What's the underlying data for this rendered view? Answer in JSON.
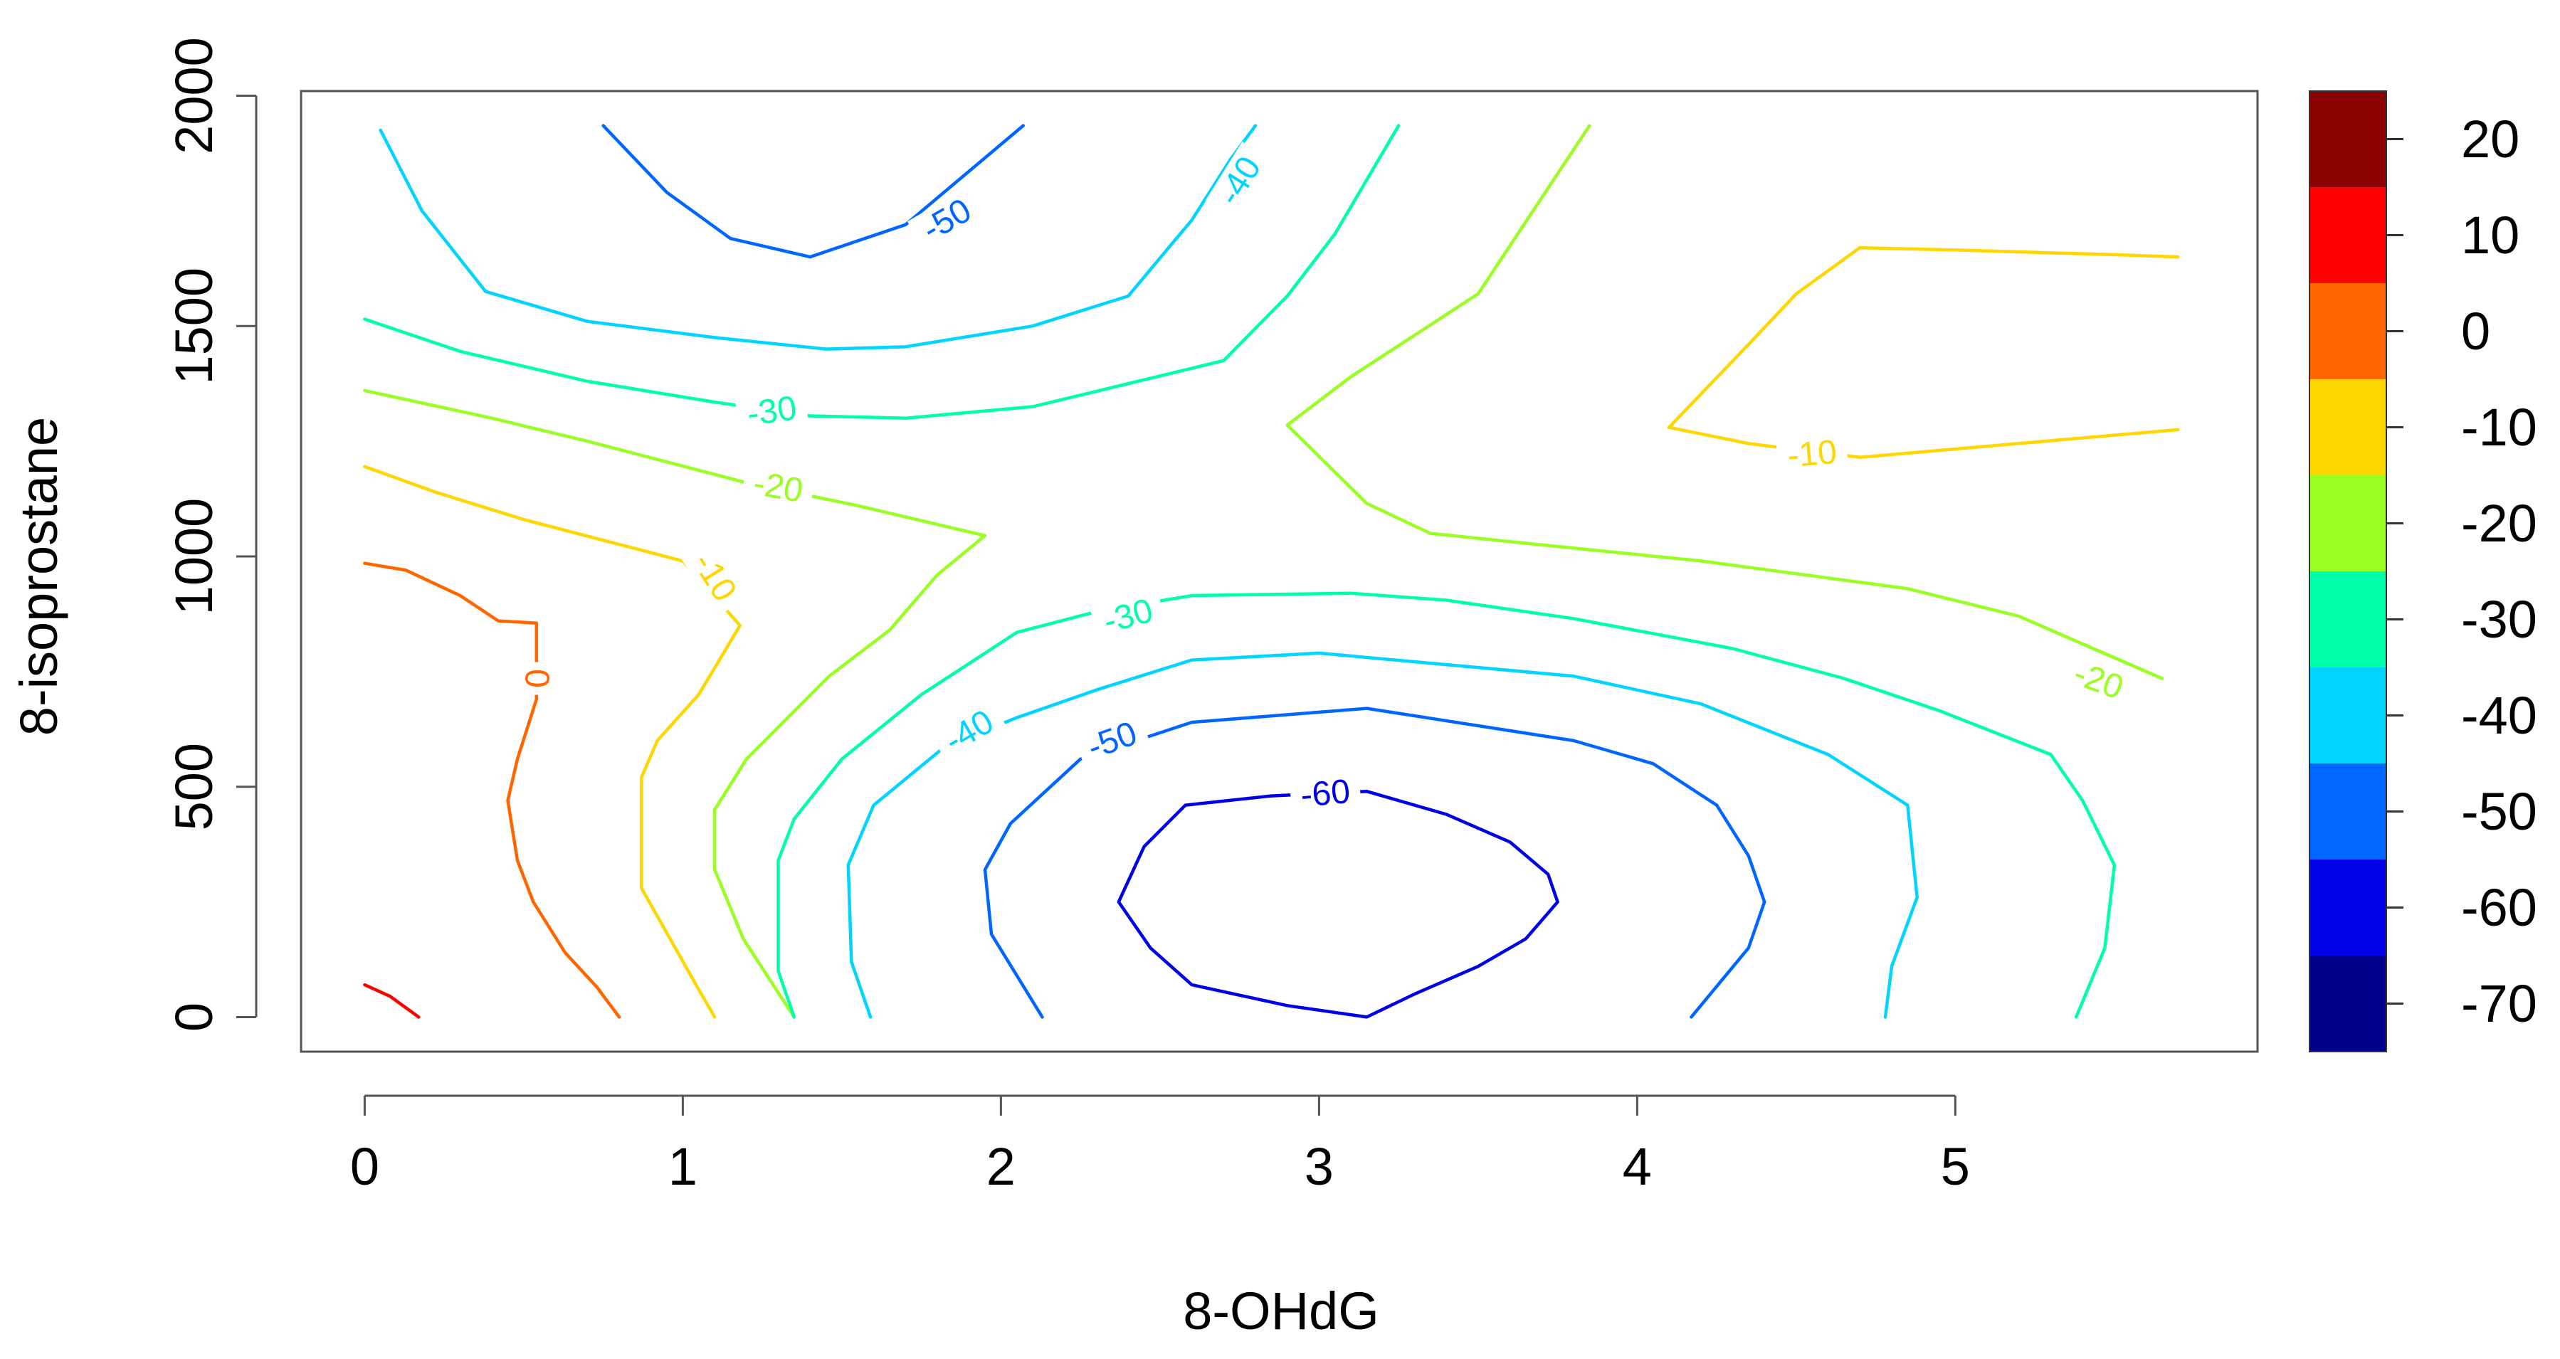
{
  "chart_data": {
    "type": "contour",
    "xlabel": "8-OHdG",
    "ylabel": "8-isoprostane",
    "xlim": [
      -0.2,
      5.95
    ],
    "ylim": [
      -75,
      2010
    ],
    "x_ticks": [
      0,
      1,
      2,
      3,
      4,
      5
    ],
    "y_ticks": [
      0,
      500,
      1000,
      1500,
      2000
    ],
    "colorbar": {
      "breaks": [
        -75,
        -65,
        -55,
        -45,
        -35,
        -25,
        -15,
        -5,
        5,
        15,
        25
      ],
      "colors": [
        "#00008B",
        "#0000E6",
        "#0066FF",
        "#00D4FF",
        "#00FFAA",
        "#99FF22",
        "#FFD700",
        "#FF6600",
        "#FF0000",
        "#8B0000"
      ],
      "tick_labels": [
        "20",
        "10",
        "0",
        "-10",
        "-20",
        "-30",
        "-40",
        "-50",
        "-60",
        "-70"
      ],
      "tick_values": [
        20,
        10,
        0,
        -10,
        -20,
        -30,
        -40,
        -50,
        -60,
        -70
      ]
    },
    "contours": [
      {
        "level": 10,
        "label": "",
        "color": "#FF0000",
        "segments": [
          [
            [
              0.0,
              70
            ],
            [
              0.08,
              45
            ],
            [
              0.17,
              0
            ]
          ]
        ],
        "labels": []
      },
      {
        "level": 0,
        "label": "0",
        "color": "#FF6600",
        "segments": [
          [
            [
              0.0,
              985
            ],
            [
              0.13,
              970
            ],
            [
              0.3,
              915
            ],
            [
              0.42,
              860
            ],
            [
              0.54,
              855
            ],
            [
              0.54,
              690
            ],
            [
              0.48,
              560
            ],
            [
              0.45,
              470
            ],
            [
              0.48,
              340
            ],
            [
              0.53,
              250
            ],
            [
              0.63,
              140
            ],
            [
              0.73,
              65
            ],
            [
              0.8,
              0
            ]
          ]
        ],
        "labels": [
          {
            "x": 0.54,
            "y": 735,
            "angle": 90
          }
        ]
      },
      {
        "level": -10,
        "label": "-10",
        "color": "#FFD700",
        "segments": [
          [
            [
              0.0,
              1195
            ],
            [
              0.22,
              1140
            ],
            [
              0.5,
              1080
            ],
            [
              0.75,
              1035
            ],
            [
              1.0,
              990
            ],
            [
              1.18,
              850
            ],
            [
              1.05,
              700
            ],
            [
              0.92,
              600
            ],
            [
              0.87,
              520
            ],
            [
              0.87,
              280
            ],
            [
              0.96,
              170
            ],
            [
              1.05,
              60
            ],
            [
              1.1,
              0
            ]
          ]
        ],
        "labels": [
          {
            "x": 1.1,
            "y": 955,
            "angle": 58
          }
        ]
      },
      {
        "level": -10,
        "label": "-10",
        "color": "#FFD700",
        "segments": [
          [
            [
              4.1,
              1280
            ],
            [
              4.35,
              1460
            ],
            [
              4.5,
              1570
            ],
            [
              4.7,
              1670
            ],
            [
              5.0,
              1665
            ],
            [
              5.5,
              1655
            ],
            [
              5.7,
              1650
            ]
          ],
          [
            [
              4.1,
              1280
            ],
            [
              4.35,
              1245
            ],
            [
              4.7,
              1215
            ],
            [
              5.2,
              1245
            ],
            [
              5.7,
              1275
            ]
          ]
        ],
        "labels": [
          {
            "x": 4.55,
            "y": 1222,
            "angle": -5
          }
        ]
      },
      {
        "level": -20,
        "label": "-20",
        "color": "#99FF22",
        "segments": [
          [
            [
              0.0,
              1360
            ],
            [
              0.4,
              1300
            ],
            [
              0.7,
              1250
            ],
            [
              1.2,
              1160
            ],
            [
              1.55,
              1110
            ],
            [
              1.95,
              1045
            ],
            [
              1.8,
              960
            ],
            [
              1.65,
              840
            ],
            [
              1.46,
              740
            ],
            [
              1.2,
              560
            ],
            [
              1.1,
              450
            ],
            [
              1.1,
              320
            ],
            [
              1.19,
              170
            ],
            [
              1.35,
              0
            ]
          ],
          [
            [
              3.85,
              1935
            ],
            [
              3.5,
              1570
            ],
            [
              3.1,
              1390
            ],
            [
              2.9,
              1285
            ],
            [
              3.15,
              1115
            ],
            [
              3.35,
              1050
            ],
            [
              3.7,
              1025
            ],
            [
              4.2,
              990
            ],
            [
              4.85,
              930
            ],
            [
              5.2,
              870
            ],
            [
              5.4,
              810
            ],
            [
              5.65,
              735
            ]
          ]
        ],
        "labels": [
          {
            "x": 1.3,
            "y": 1150,
            "angle": 10
          },
          {
            "x": 5.45,
            "y": 730,
            "angle": 20
          }
        ]
      },
      {
        "level": -30,
        "label": "-30",
        "color": "#00FFAA",
        "segments": [
          [
            [
              0.0,
              1515
            ],
            [
              0.3,
              1445
            ],
            [
              0.7,
              1380
            ],
            [
              1.1,
              1335
            ],
            [
              1.4,
              1305
            ],
            [
              1.7,
              1300
            ],
            [
              2.1,
              1325
            ],
            [
              2.7,
              1425
            ],
            [
              2.9,
              1565
            ],
            [
              3.05,
              1700
            ],
            [
              3.25,
              1935
            ]
          ],
          [
            [
              1.35,
              0
            ],
            [
              1.3,
              100
            ],
            [
              1.3,
              340
            ],
            [
              1.35,
              430
            ],
            [
              1.5,
              560
            ],
            [
              1.75,
              700
            ],
            [
              2.05,
              835
            ],
            [
              2.3,
              880
            ],
            [
              2.6,
              915
            ],
            [
              3.1,
              920
            ],
            [
              3.4,
              905
            ],
            [
              3.8,
              865
            ],
            [
              4.3,
              800
            ],
            [
              4.65,
              735
            ],
            [
              4.95,
              665
            ],
            [
              5.3,
              570
            ],
            [
              5.4,
              470
            ],
            [
              5.5,
              330
            ],
            [
              5.47,
              150
            ],
            [
              5.38,
              0
            ]
          ]
        ],
        "labels": [
          {
            "x": 1.28,
            "y": 1315,
            "angle": -8
          },
          {
            "x": 2.4,
            "y": 870,
            "angle": -15
          }
        ]
      },
      {
        "level": -40,
        "label": "-40",
        "color": "#00D4FF",
        "segments": [
          [
            [
              0.05,
              1925
            ],
            [
              0.18,
              1750
            ],
            [
              0.38,
              1575
            ],
            [
              0.7,
              1510
            ],
            [
              1.1,
              1475
            ],
            [
              1.45,
              1450
            ],
            [
              1.7,
              1455
            ],
            [
              2.1,
              1500
            ],
            [
              2.4,
              1565
            ],
            [
              2.6,
              1730
            ],
            [
              2.72,
              1860
            ],
            [
              2.8,
              1935
            ]
          ],
          [
            [
              1.59,
              0
            ],
            [
              1.53,
              120
            ],
            [
              1.52,
              330
            ],
            [
              1.6,
              460
            ],
            [
              1.82,
              585
            ],
            [
              2.05,
              650
            ],
            [
              2.3,
              710
            ],
            [
              2.6,
              775
            ],
            [
              3.0,
              790
            ],
            [
              3.4,
              765
            ],
            [
              3.8,
              740
            ],
            [
              4.2,
              680
            ],
            [
              4.6,
              570
            ],
            [
              4.85,
              460
            ],
            [
              4.88,
              260
            ],
            [
              4.8,
              110
            ],
            [
              4.78,
              0
            ]
          ]
        ],
        "labels": [
          {
            "x": 2.75,
            "y": 1815,
            "angle": -58
          },
          {
            "x": 1.9,
            "y": 620,
            "angle": -30
          }
        ]
      },
      {
        "level": -50,
        "label": "-50",
        "color": "#0066FF",
        "segments": [
          [
            [
              0.75,
              1935
            ],
            [
              0.95,
              1790
            ],
            [
              1.15,
              1690
            ],
            [
              1.4,
              1650
            ],
            [
              1.7,
              1720
            ],
            [
              2.07,
              1935
            ]
          ],
          [
            [
              2.13,
              0
            ],
            [
              1.97,
              180
            ],
            [
              1.95,
              320
            ],
            [
              2.03,
              420
            ],
            [
              2.25,
              560
            ],
            [
              2.6,
              640
            ],
            [
              3.15,
              670
            ],
            [
              3.8,
              600
            ],
            [
              4.05,
              550
            ],
            [
              4.25,
              460
            ],
            [
              4.35,
              350
            ],
            [
              4.4,
              250
            ],
            [
              4.35,
              150
            ],
            [
              4.17,
              0
            ]
          ]
        ],
        "labels": [
          {
            "x": 1.83,
            "y": 1730,
            "angle": -30
          },
          {
            "x": 2.35,
            "y": 600,
            "angle": -20
          }
        ]
      },
      {
        "level": -60,
        "label": "-60",
        "color": "#0000E6",
        "segments": [
          [
            [
              2.58,
              460
            ],
            [
              2.85,
              480
            ],
            [
              3.15,
              490
            ],
            [
              3.4,
              440
            ],
            [
              3.6,
              380
            ],
            [
              3.72,
              310
            ],
            [
              3.75,
              250
            ],
            [
              3.65,
              170
            ],
            [
              3.5,
              110
            ],
            [
              3.3,
              50
            ],
            [
              3.15,
              0
            ],
            [
              2.9,
              25
            ],
            [
              2.6,
              70
            ],
            [
              2.47,
              150
            ],
            [
              2.37,
              250
            ],
            [
              2.45,
              370
            ],
            [
              2.58,
              460
            ]
          ]
        ],
        "labels": [
          {
            "x": 3.02,
            "y": 485,
            "angle": -5
          }
        ]
      }
    ]
  }
}
